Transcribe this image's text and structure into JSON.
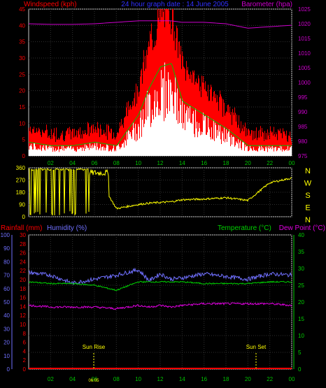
{
  "header": {
    "windspeed_label": "Windspeed (kph)",
    "title": "24 hour graph date : 14 June 2005",
    "barometer_label": "Barometer (hpa)"
  },
  "panel1": {
    "y_left_ticks": [
      "0",
      "5",
      "10",
      "15",
      "20",
      "25",
      "30",
      "35",
      "40",
      "45"
    ],
    "y_right_ticks": [
      "975",
      "980",
      "985",
      "990",
      "995",
      "1000",
      "1005",
      "1010",
      "1015",
      "1020",
      "1025"
    ],
    "x_ticks": [
      "02",
      "04",
      "06",
      "08",
      "10",
      "12",
      "14",
      "16",
      "18",
      "20",
      "22",
      "00"
    ]
  },
  "panel2": {
    "y_left_ticks": [
      "0",
      "90",
      "180",
      "270",
      "360"
    ],
    "compass": [
      "N",
      "W",
      "S",
      "E",
      "N"
    ]
  },
  "panel3": {
    "rainfall_label": "Rainfall (mm)",
    "humidity_label": "Humidity (%)",
    "temperature_label": "Temperature (°C)",
    "dewpoint_label": "Dew Point (°C)",
    "humidity_ticks": [
      "0",
      "10",
      "20",
      "30",
      "40",
      "50",
      "60",
      "70",
      "80",
      "90",
      "100"
    ],
    "rainfall_ticks": [
      "0",
      "2",
      "4",
      "6",
      "8",
      "10",
      "12",
      "14",
      "16",
      "18",
      "20",
      "22",
      "24",
      "26",
      "28",
      "30"
    ],
    "temp_ticks": [
      "0",
      "5",
      "10",
      "15",
      "20",
      "25",
      "30",
      "35",
      "40"
    ],
    "x_ticks": [
      "02",
      "04",
      "06",
      "08",
      "10",
      "12",
      "14",
      "16",
      "18",
      "20",
      "22",
      "00"
    ],
    "sun_rise_label": "Sun Rise",
    "sun_set_label": "Sun Set",
    "sun_rise_time": "06:05"
  },
  "colors": {
    "wind_gust": "#ff0000",
    "wind_avg": "#00c000",
    "wind_fill": "#ffffff",
    "barometer": "#cc00cc",
    "direction": "#ffff00",
    "humidity": "#7070ff",
    "temperature": "#00d000",
    "dewpoint": "#e000e0",
    "rainfall": "#ff0000",
    "axis_green": "#00c000"
  },
  "chart_data": [
    {
      "type": "line",
      "title": "24 hour graph date : 14 June 2005",
      "x": [
        0,
        2,
        4,
        6,
        8,
        10,
        11,
        12,
        13,
        14,
        16,
        18,
        20,
        22,
        24
      ],
      "series": [
        {
          "name": "Windspeed (kph)",
          "values": [
            4,
            3,
            3,
            4,
            3,
            12,
            20,
            26,
            27,
            16,
            12,
            8,
            3,
            3,
            3
          ]
        },
        {
          "name": "Barometer (hpa)",
          "values": [
            1020,
            1019.8,
            1019.8,
            1020,
            1020.5,
            1021,
            1021,
            1021,
            1021,
            1020.5,
            1020.5,
            1020,
            1018.5,
            1019,
            1019.5
          ]
        }
      ],
      "ylim": [
        0,
        45
      ],
      "y2lim": [
        975,
        1025
      ]
    },
    {
      "type": "line",
      "series": [
        {
          "name": "Wind direction",
          "values": [
            360,
            360,
            360,
            335,
            60,
            90,
            100,
            105,
            110,
            125,
            130,
            140,
            120,
            250,
            285
          ]
        }
      ],
      "x": [
        0,
        2,
        4,
        6,
        8,
        10,
        11,
        12,
        13,
        14,
        16,
        18,
        20,
        22,
        24
      ],
      "ylim": [
        0,
        360
      ]
    },
    {
      "type": "line",
      "x": [
        0,
        2,
        4,
        6,
        8,
        10,
        11,
        12,
        13,
        14,
        16,
        18,
        20,
        22,
        24
      ],
      "series": [
        {
          "name": "Humidity (%)",
          "values": [
            72,
            70,
            64,
            67,
            70,
            74,
            66,
            71,
            67,
            68,
            71,
            69,
            67,
            71,
            70
          ]
        },
        {
          "name": "Temperature (°C)",
          "values": [
            26,
            25.5,
            25.5,
            25,
            23.5,
            26,
            26,
            26,
            26,
            26,
            25.5,
            25.5,
            25.5,
            26,
            26
          ]
        },
        {
          "name": "Dew Point (°C)",
          "values": [
            19,
            18.5,
            18.5,
            18.5,
            18,
            19,
            18.5,
            19,
            18.5,
            19,
            19.5,
            19.5,
            19.5,
            19.5,
            19
          ]
        },
        {
          "name": "Rainfall (mm)",
          "values": [
            0,
            0,
            0,
            0,
            0,
            0,
            0,
            0,
            0,
            0,
            0,
            0,
            0,
            0,
            0
          ]
        }
      ]
    }
  ]
}
